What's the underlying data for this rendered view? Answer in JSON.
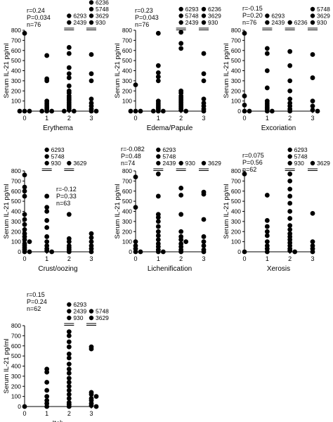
{
  "figure": {
    "colors": {
      "ink": "#000000",
      "background": "#ffffff"
    }
  },
  "chart_data": [
    {
      "type": "scatter",
      "title": "",
      "xlabel": "Erythema",
      "ylabel": "Serum IL-21 pg/ml",
      "categories": [
        "0",
        "1",
        "2",
        "3"
      ],
      "xlim": [
        0,
        3
      ],
      "ylim": [
        0,
        800
      ],
      "yticks": [
        0,
        100,
        200,
        300,
        400,
        500,
        600,
        700,
        800
      ],
      "stats": {
        "r": "r=0.24",
        "p": "P=0.034",
        "n": "n=76"
      },
      "points": [
        [
          0,
          770
        ],
        [
          0,
          0
        ],
        [
          0,
          0
        ],
        [
          0,
          0
        ],
        [
          1,
          550
        ],
        [
          1,
          320
        ],
        [
          1,
          300
        ],
        [
          1,
          100
        ],
        [
          1,
          80
        ],
        [
          1,
          60
        ],
        [
          1,
          40
        ],
        [
          1,
          20
        ],
        [
          1,
          0
        ],
        [
          1,
          0
        ],
        [
          1,
          0
        ],
        [
          2,
          630
        ],
        [
          2,
          570
        ],
        [
          2,
          430
        ],
        [
          2,
          370
        ],
        [
          2,
          330
        ],
        [
          2,
          250
        ],
        [
          2,
          200
        ],
        [
          2,
          180
        ],
        [
          2,
          150
        ],
        [
          2,
          130
        ],
        [
          2,
          110
        ],
        [
          2,
          90
        ],
        [
          2,
          70
        ],
        [
          2,
          50
        ],
        [
          2,
          30
        ],
        [
          2,
          10
        ],
        [
          2,
          0
        ],
        [
          2,
          0
        ],
        [
          3,
          560
        ],
        [
          3,
          370
        ],
        [
          3,
          300
        ],
        [
          3,
          120
        ],
        [
          3,
          80
        ],
        [
          3,
          50
        ],
        [
          3,
          20
        ],
        [
          3,
          0
        ],
        [
          3,
          0
        ]
      ],
      "outliers": [
        {
          "x": 2,
          "labels": [
            "6293",
            "2439"
          ]
        },
        {
          "x": 3,
          "labels": [
            "6236",
            "5748",
            "3629",
            "930"
          ]
        }
      ]
    },
    {
      "type": "scatter",
      "title": "",
      "xlabel": "Edema/Papule",
      "ylabel": "Serum IL-21 pg/ml",
      "categories": [
        "0",
        "1",
        "2",
        "3"
      ],
      "xlim": [
        0,
        3
      ],
      "ylim": [
        0,
        800
      ],
      "yticks": [
        0,
        100,
        200,
        300,
        400,
        500,
        600,
        700,
        800
      ],
      "stats": {
        "r": "r=0.23",
        "p": "P=0.043",
        "n": "n=76"
      },
      "points": [
        [
          0,
          260
        ],
        [
          0,
          0
        ],
        [
          0,
          0
        ],
        [
          0,
          0
        ],
        [
          1,
          770
        ],
        [
          1,
          450
        ],
        [
          1,
          380
        ],
        [
          1,
          340
        ],
        [
          1,
          300
        ],
        [
          1,
          100
        ],
        [
          1,
          80
        ],
        [
          1,
          60
        ],
        [
          1,
          40
        ],
        [
          1,
          20
        ],
        [
          1,
          0
        ],
        [
          1,
          0
        ],
        [
          1,
          0
        ],
        [
          2,
          780
        ],
        [
          2,
          670
        ],
        [
          2,
          620
        ],
        [
          2,
          200
        ],
        [
          2,
          180
        ],
        [
          2,
          150
        ],
        [
          2,
          130
        ],
        [
          2,
          110
        ],
        [
          2,
          90
        ],
        [
          2,
          70
        ],
        [
          2,
          50
        ],
        [
          2,
          30
        ],
        [
          2,
          10
        ],
        [
          2,
          0
        ],
        [
          3,
          570
        ],
        [
          3,
          370
        ],
        [
          3,
          300
        ],
        [
          3,
          120
        ],
        [
          3,
          80
        ],
        [
          3,
          50
        ],
        [
          3,
          20
        ],
        [
          3,
          0
        ]
      ],
      "outliers": [
        {
          "x": 2,
          "labels": [
            "6293",
            "5748",
            "2439"
          ]
        },
        {
          "x": 3,
          "labels": [
            "6236",
            "3629",
            "930"
          ]
        }
      ]
    },
    {
      "type": "scatter",
      "title": "",
      "xlabel": "Excoriation",
      "ylabel": "Serum IL-21 pg/ml",
      "categories": [
        "0",
        "1",
        "2",
        "3"
      ],
      "xlim": [
        0,
        3
      ],
      "ylim": [
        0,
        800
      ],
      "yticks": [
        0,
        100,
        200,
        300,
        400,
        500,
        600,
        700,
        800
      ],
      "stats": {
        "r": "r=-0.15",
        "p": "P=0.20",
        "n": "n=76"
      },
      "points": [
        [
          0,
          770
        ],
        [
          0,
          150
        ],
        [
          0,
          60
        ],
        [
          0,
          0
        ],
        [
          0,
          0
        ],
        [
          1,
          620
        ],
        [
          1,
          570
        ],
        [
          1,
          400
        ],
        [
          1,
          230
        ],
        [
          1,
          100
        ],
        [
          1,
          80
        ],
        [
          1,
          60
        ],
        [
          1,
          40
        ],
        [
          1,
          20
        ],
        [
          1,
          0
        ],
        [
          1,
          0
        ],
        [
          2,
          590
        ],
        [
          2,
          450
        ],
        [
          2,
          300
        ],
        [
          2,
          200
        ],
        [
          2,
          120
        ],
        [
          2,
          80
        ],
        [
          2,
          50
        ],
        [
          2,
          20
        ],
        [
          2,
          0
        ],
        [
          3,
          560
        ],
        [
          3,
          330
        ],
        [
          3,
          100
        ],
        [
          3,
          50
        ],
        [
          3,
          10
        ],
        [
          3,
          0
        ]
      ],
      "outliers": [
        {
          "x": 1,
          "labels": [
            "6293",
            "2439"
          ]
        },
        {
          "x": 2,
          "labels": [
            "6236"
          ]
        },
        {
          "x": 3,
          "labels": [
            "5748",
            "3629",
            "930"
          ]
        }
      ]
    },
    {
      "type": "scatter",
      "title": "",
      "xlabel": "Crust/oozing",
      "ylabel": "Serum IL-21 pg/ml",
      "categories": [
        "0",
        "1",
        "2",
        "3"
      ],
      "xlim": [
        0,
        3
      ],
      "ylim": [
        0,
        800
      ],
      "yticks": [
        0,
        100,
        200,
        300,
        400,
        500,
        600,
        700,
        800
      ],
      "stats": {
        "r": "r=-0.12",
        "p": "P=0.33",
        "n": "n=63"
      },
      "points": [
        [
          0,
          760
        ],
        [
          0,
          640
        ],
        [
          0,
          600
        ],
        [
          0,
          550
        ],
        [
          0,
          370
        ],
        [
          0,
          320
        ],
        [
          0,
          270
        ],
        [
          0,
          220
        ],
        [
          0,
          180
        ],
        [
          0,
          150
        ],
        [
          0,
          120
        ],
        [
          0,
          100
        ],
        [
          0,
          80
        ],
        [
          0,
          60
        ],
        [
          0,
          40
        ],
        [
          0,
          20
        ],
        [
          0,
          0
        ],
        [
          0,
          0
        ],
        [
          1,
          550
        ],
        [
          1,
          440
        ],
        [
          1,
          400
        ],
        [
          1,
          310
        ],
        [
          1,
          240
        ],
        [
          1,
          150
        ],
        [
          1,
          100
        ],
        [
          1,
          60
        ],
        [
          1,
          30
        ],
        [
          1,
          10
        ],
        [
          1,
          0
        ],
        [
          2,
          370
        ],
        [
          2,
          130
        ],
        [
          2,
          100
        ],
        [
          2,
          60
        ],
        [
          2,
          40
        ],
        [
          2,
          20
        ],
        [
          2,
          0
        ],
        [
          3,
          180
        ],
        [
          3,
          140
        ],
        [
          3,
          100
        ],
        [
          3,
          60
        ],
        [
          3,
          30
        ],
        [
          3,
          0
        ]
      ],
      "outliers": [
        {
          "x": 1,
          "labels": [
            "6293",
            "5748",
            "930"
          ]
        },
        {
          "x": 2,
          "labels": [
            "3629"
          ]
        }
      ]
    },
    {
      "type": "scatter",
      "title": "",
      "xlabel": "Lichenification",
      "ylabel": "Serum IL-21 pg/ml",
      "categories": [
        "0",
        "1",
        "2",
        "3"
      ],
      "xlim": [
        0,
        3
      ],
      "ylim": [
        0,
        800
      ],
      "yticks": [
        0,
        100,
        200,
        300,
        400,
        500,
        600,
        700,
        800
      ],
      "stats": {
        "r": "r=-0.082",
        "p": "P=0.48",
        "n": "n=74"
      },
      "points": [
        [
          0,
          740
        ],
        [
          0,
          440
        ],
        [
          0,
          100
        ],
        [
          0,
          60
        ],
        [
          0,
          30
        ],
        [
          0,
          0
        ],
        [
          0,
          0
        ],
        [
          1,
          770
        ],
        [
          1,
          550
        ],
        [
          1,
          370
        ],
        [
          1,
          340
        ],
        [
          1,
          300
        ],
        [
          1,
          250
        ],
        [
          1,
          200
        ],
        [
          1,
          160
        ],
        [
          1,
          120
        ],
        [
          1,
          80
        ],
        [
          1,
          50
        ],
        [
          1,
          20
        ],
        [
          1,
          0
        ],
        [
          1,
          0
        ],
        [
          2,
          630
        ],
        [
          2,
          560
        ],
        [
          2,
          370
        ],
        [
          2,
          200
        ],
        [
          2,
          150
        ],
        [
          2,
          120
        ],
        [
          2,
          100
        ],
        [
          2,
          80
        ],
        [
          2,
          50
        ],
        [
          2,
          20
        ],
        [
          2,
          0
        ],
        [
          3,
          590
        ],
        [
          3,
          570
        ],
        [
          3,
          320
        ],
        [
          3,
          150
        ],
        [
          3,
          100
        ],
        [
          3,
          60
        ],
        [
          3,
          20
        ],
        [
          3,
          0
        ]
      ],
      "outliers": [
        {
          "x": 1,
          "labels": [
            "6293",
            "5748",
            "2439"
          ]
        },
        {
          "x": 2,
          "labels": [
            "930"
          ]
        },
        {
          "x": 3,
          "labels": [
            "3629"
          ]
        }
      ]
    },
    {
      "type": "scatter",
      "title": "",
      "xlabel": "Xerosis",
      "ylabel": "Serum IL-21 pg/ml",
      "categories": [
        "0",
        "1",
        "2",
        "3"
      ],
      "xlim": [
        0,
        3
      ],
      "ylim": [
        0,
        800
      ],
      "yticks": [
        0,
        100,
        200,
        300,
        400,
        500,
        600,
        700,
        800
      ],
      "stats": {
        "r": "r=0.075",
        "p": "P=0.56",
        "n": "n=62"
      },
      "points": [
        [
          0,
          770
        ],
        [
          0,
          0
        ],
        [
          1,
          560
        ],
        [
          1,
          310
        ],
        [
          1,
          250
        ],
        [
          1,
          200
        ],
        [
          1,
          160
        ],
        [
          1,
          100
        ],
        [
          1,
          60
        ],
        [
          1,
          30
        ],
        [
          1,
          0
        ],
        [
          2,
          770
        ],
        [
          2,
          700
        ],
        [
          2,
          620
        ],
        [
          2,
          550
        ],
        [
          2,
          480
        ],
        [
          2,
          400
        ],
        [
          2,
          330
        ],
        [
          2,
          260
        ],
        [
          2,
          220
        ],
        [
          2,
          180
        ],
        [
          2,
          150
        ],
        [
          2,
          120
        ],
        [
          2,
          90
        ],
        [
          2,
          60
        ],
        [
          2,
          30
        ],
        [
          2,
          10
        ],
        [
          2,
          0
        ],
        [
          3,
          380
        ],
        [
          3,
          100
        ],
        [
          3,
          60
        ],
        [
          3,
          30
        ],
        [
          3,
          0
        ]
      ],
      "outliers": [
        {
          "x": 2,
          "labels": [
            "6293",
            "5748",
            "930"
          ]
        },
        {
          "x": 3,
          "labels": [
            "3629"
          ]
        }
      ]
    },
    {
      "type": "scatter",
      "title": "",
      "xlabel": "Itch",
      "ylabel": "Serum IL-21 pg/ml",
      "categories": [
        "0",
        "1",
        "2",
        "3"
      ],
      "xlim": [
        0,
        3
      ],
      "ylim": [
        0,
        800
      ],
      "yticks": [
        0,
        100,
        200,
        300,
        400,
        500,
        600,
        700,
        800
      ],
      "stats": {
        "r": "r=0.15",
        "p": "P=0.24",
        "n": "n=62"
      },
      "points": [
        [
          0,
          0
        ],
        [
          1,
          370
        ],
        [
          1,
          340
        ],
        [
          1,
          240
        ],
        [
          1,
          160
        ],
        [
          1,
          100
        ],
        [
          1,
          60
        ],
        [
          1,
          30
        ],
        [
          1,
          0
        ],
        [
          2,
          740
        ],
        [
          2,
          700
        ],
        [
          2,
          640
        ],
        [
          2,
          590
        ],
        [
          2,
          520
        ],
        [
          2,
          480
        ],
        [
          2,
          420
        ],
        [
          2,
          370
        ],
        [
          2,
          330
        ],
        [
          2,
          280
        ],
        [
          2,
          240
        ],
        [
          2,
          200
        ],
        [
          2,
          160
        ],
        [
          2,
          120
        ],
        [
          2,
          80
        ],
        [
          2,
          40
        ],
        [
          2,
          20
        ],
        [
          2,
          0
        ],
        [
          3,
          590
        ],
        [
          3,
          570
        ],
        [
          3,
          140
        ],
        [
          3,
          120
        ],
        [
          3,
          100
        ],
        [
          3,
          80
        ],
        [
          3,
          60
        ],
        [
          3,
          30
        ],
        [
          3,
          10
        ],
        [
          3,
          0
        ]
      ],
      "outliers": [
        {
          "x": 2,
          "labels": [
            "6293",
            "2439",
            "930"
          ]
        },
        {
          "x": 3,
          "labels": [
            "5748",
            "3629"
          ]
        }
      ]
    }
  ]
}
